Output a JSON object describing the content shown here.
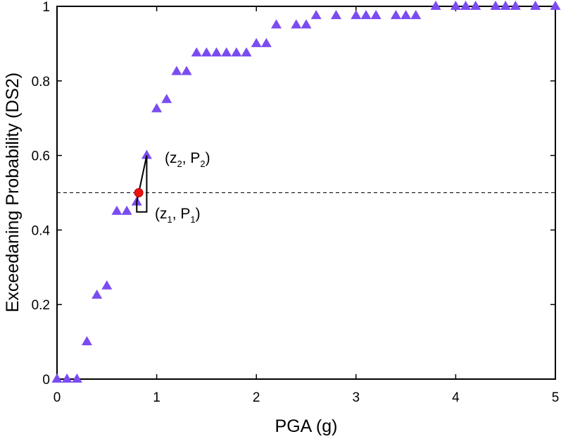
{
  "chart_data": {
    "type": "scatter",
    "xlabel": "PGA (g)",
    "ylabel": "Exceedaning Probability (DS2)",
    "xlim": [
      0,
      5
    ],
    "ylim": [
      0,
      1
    ],
    "xticks": [
      0,
      1,
      2,
      3,
      4,
      5
    ],
    "yticks": [
      0,
      0.2,
      0.4,
      0.6,
      0.8,
      1
    ],
    "xtick_labels": [
      "0",
      "1",
      "2",
      "3",
      "4",
      "5"
    ],
    "ytick_labels": [
      "0",
      "0.2",
      "0.4",
      "0.6",
      "0.8",
      "1"
    ],
    "grid": false,
    "series": [
      {
        "name": "data points",
        "marker": "triangle",
        "color": "#7b4cf0",
        "points": [
          [
            0.0,
            0.0
          ],
          [
            0.1,
            0.0
          ],
          [
            0.2,
            0.0
          ],
          [
            0.3,
            0.1
          ],
          [
            0.4,
            0.225
          ],
          [
            0.5,
            0.25
          ],
          [
            0.6,
            0.45
          ],
          [
            0.7,
            0.45
          ],
          [
            0.8,
            0.475
          ],
          [
            0.9,
            0.6
          ],
          [
            1.0,
            0.725
          ],
          [
            1.1,
            0.75
          ],
          [
            1.2,
            0.825
          ],
          [
            1.3,
            0.825
          ],
          [
            1.4,
            0.875
          ],
          [
            1.5,
            0.875
          ],
          [
            1.6,
            0.875
          ],
          [
            1.7,
            0.875
          ],
          [
            1.8,
            0.875
          ],
          [
            1.9,
            0.875
          ],
          [
            2.0,
            0.9
          ],
          [
            2.1,
            0.9
          ],
          [
            2.2,
            0.95
          ],
          [
            2.4,
            0.95
          ],
          [
            2.5,
            0.95
          ],
          [
            2.6,
            0.975
          ],
          [
            2.8,
            0.975
          ],
          [
            3.0,
            0.975
          ],
          [
            3.1,
            0.975
          ],
          [
            3.2,
            0.975
          ],
          [
            3.4,
            0.975
          ],
          [
            3.5,
            0.975
          ],
          [
            3.6,
            0.975
          ],
          [
            3.8,
            1.0
          ],
          [
            4.0,
            1.0
          ],
          [
            4.1,
            1.0
          ],
          [
            4.2,
            1.0
          ],
          [
            4.4,
            1.0
          ],
          [
            4.5,
            1.0
          ],
          [
            4.6,
            1.0
          ],
          [
            4.8,
            1.0
          ],
          [
            5.0,
            1.0
          ]
        ]
      }
    ],
    "reference_line": {
      "y": 0.5,
      "style": "dashed"
    },
    "interpolated_point": {
      "x": 0.82,
      "y": 0.5,
      "color": "#ee1111"
    },
    "interpolation_segment": {
      "from": [
        0.8,
        0.475
      ],
      "to": [
        0.9,
        0.6
      ]
    },
    "annotations": [
      {
        "id": "z2p2",
        "main": "(z",
        "sub1": "2",
        "mid": ", P",
        "sub2": "2",
        "end": ")",
        "x": 0.9,
        "y": 0.6
      },
      {
        "id": "z1p1",
        "main": "(z",
        "sub1": "1",
        "mid": ", P",
        "sub2": "1",
        "end": ")",
        "x": 0.8,
        "y": 0.475
      }
    ]
  }
}
